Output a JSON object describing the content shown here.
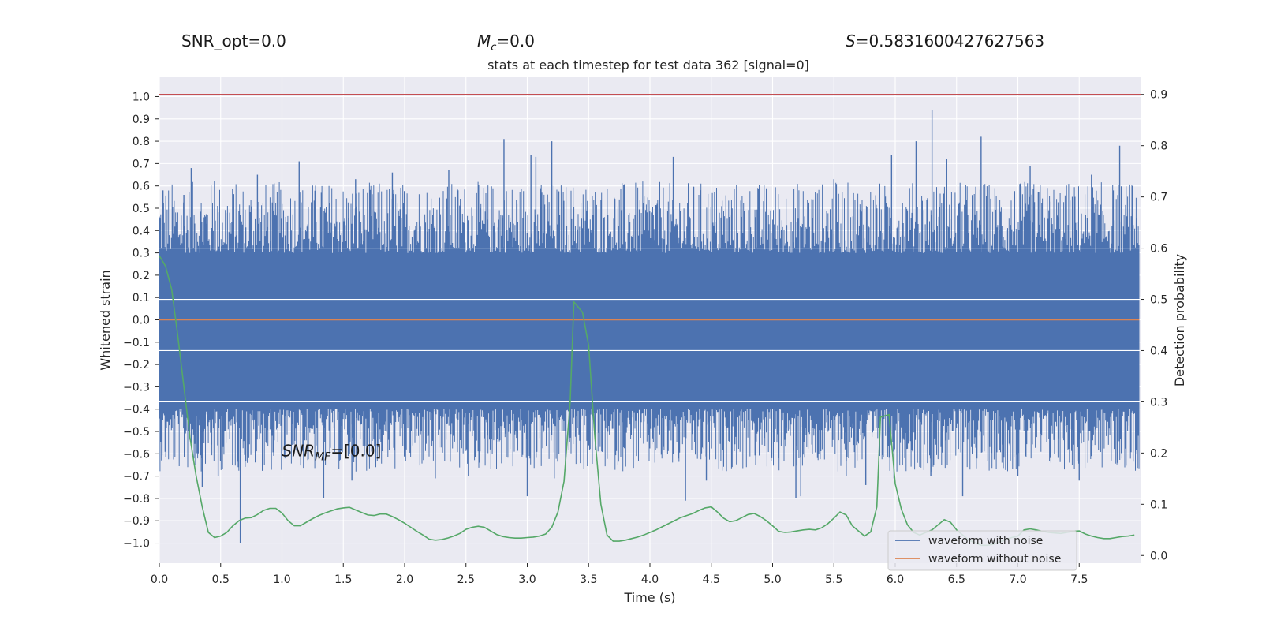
{
  "header": {
    "snr_opt": "SNR_opt=0.0",
    "mc_symbol": "M",
    "mc_sub": "c",
    "mc_value": "=0.0",
    "s_symbol": "S",
    "s_value": "=0.5831600427627563"
  },
  "colors": {
    "background": "#eaeaf2",
    "grid": "#ffffff",
    "noisy": "#4c72b0",
    "clean": "#dd8452",
    "prob": "#55a868",
    "threshold": "#c44e52"
  },
  "chart_data": {
    "type": "line",
    "title": "stats at each timestep for test data 362 [signal=0]",
    "xlabel": "Time (s)",
    "ylabel": "Whitened strain",
    "y2label": "Detection probability",
    "xlim": [
      0.0,
      8.0
    ],
    "ylim": [
      -1.09,
      1.09
    ],
    "y2lim": [
      -0.015,
      0.935
    ],
    "xticks": [
      0.0,
      0.5,
      1.0,
      1.5,
      2.0,
      2.5,
      3.0,
      3.5,
      4.0,
      4.5,
      5.0,
      5.5,
      6.0,
      6.5,
      7.0,
      7.5
    ],
    "xtick_labels": [
      "0.0",
      "0.5",
      "1.0",
      "1.5",
      "2.0",
      "2.5",
      "3.0",
      "3.5",
      "4.0",
      "4.5",
      "5.0",
      "5.5",
      "6.0",
      "6.5",
      "7.0",
      "7.5"
    ],
    "yticks": [
      1.0,
      0.9,
      0.8,
      0.7,
      0.6,
      0.5,
      0.4,
      0.3,
      0.2,
      0.1,
      0.0,
      -0.1,
      -0.2,
      -0.3,
      -0.4,
      -0.5,
      -0.6,
      -0.7,
      -0.8,
      -0.9,
      -1.0
    ],
    "ytick_labels": [
      "1.0",
      "0.9",
      "0.8",
      "0.7",
      "0.6",
      "0.5",
      "0.4",
      "0.3",
      "0.2",
      "0.1",
      "0.0",
      "−0.1",
      "−0.2",
      "−0.3",
      "−0.4",
      "−0.5",
      "−0.6",
      "−0.7",
      "−0.8",
      "−0.9",
      "−1.0"
    ],
    "y2ticks": [
      0.9,
      0.8,
      0.7,
      0.6,
      0.5,
      0.4,
      0.3,
      0.2,
      0.1,
      0.0
    ],
    "y2tick_labels": [
      "0.9",
      "0.8",
      "0.7",
      "0.6",
      "0.5",
      "0.4",
      "0.3",
      "0.2",
      "0.1",
      "0.0"
    ],
    "grid": true,
    "legend_position": "lower-right",
    "series": [
      {
        "name": "waveform with noise",
        "kind": "noise-trace",
        "band": [
          -0.4,
          0.28
        ],
        "spikes": [
          {
            "x": 0.03,
            "y": 0.58
          },
          {
            "x": 0.2,
            "y": 0.56
          },
          {
            "x": 0.26,
            "y": 0.68
          },
          {
            "x": 0.45,
            "y": 0.62
          },
          {
            "x": 0.8,
            "y": 0.65
          },
          {
            "x": 1.14,
            "y": 0.71
          },
          {
            "x": 1.6,
            "y": 0.63
          },
          {
            "x": 1.9,
            "y": 0.66
          },
          {
            "x": 2.36,
            "y": 0.67
          },
          {
            "x": 2.81,
            "y": 0.81
          },
          {
            "x": 3.03,
            "y": 0.74
          },
          {
            "x": 3.07,
            "y": 0.73
          },
          {
            "x": 3.2,
            "y": 0.8
          },
          {
            "x": 4.19,
            "y": 0.73
          },
          {
            "x": 5.5,
            "y": 0.63
          },
          {
            "x": 5.97,
            "y": 0.74
          },
          {
            "x": 6.17,
            "y": 0.8
          },
          {
            "x": 6.3,
            "y": 0.94
          },
          {
            "x": 6.42,
            "y": 0.72
          },
          {
            "x": 6.7,
            "y": 0.82
          },
          {
            "x": 7.1,
            "y": 0.69
          },
          {
            "x": 7.6,
            "y": 0.65
          },
          {
            "x": 7.83,
            "y": 0.78
          },
          {
            "x": 0.66,
            "y": -1.0
          },
          {
            "x": 0.35,
            "y": -0.75
          },
          {
            "x": 0.48,
            "y": -0.7
          },
          {
            "x": 1.34,
            "y": -0.8
          },
          {
            "x": 1.57,
            "y": -0.72
          },
          {
            "x": 2.25,
            "y": -0.71
          },
          {
            "x": 2.52,
            "y": -0.7
          },
          {
            "x": 3.0,
            "y": -0.79
          },
          {
            "x": 3.22,
            "y": -0.71
          },
          {
            "x": 4.29,
            "y": -0.81
          },
          {
            "x": 4.46,
            "y": -0.72
          },
          {
            "x": 5.19,
            "y": -0.8
          },
          {
            "x": 5.23,
            "y": -0.79
          },
          {
            "x": 5.6,
            "y": -0.7
          },
          {
            "x": 5.76,
            "y": -0.74
          },
          {
            "x": 5.99,
            "y": -0.71
          },
          {
            "x": 6.29,
            "y": -0.7
          },
          {
            "x": 6.55,
            "y": -0.79
          },
          {
            "x": 7.0,
            "y": -0.7
          },
          {
            "x": 7.5,
            "y": -0.72
          }
        ]
      },
      {
        "name": "waveform without noise",
        "kind": "line",
        "x": [
          0.0,
          7.99
        ],
        "y": [
          0.0,
          0.0
        ]
      },
      {
        "name": "",
        "kind": "line",
        "axis": "y2",
        "x": [
          0.0,
          0.05,
          0.1,
          0.15,
          0.2,
          0.25,
          0.3,
          0.35,
          0.4,
          0.45,
          0.5,
          0.55,
          0.6,
          0.65,
          0.7,
          0.75,
          0.8,
          0.85,
          0.9,
          0.95,
          1.0,
          1.05,
          1.1,
          1.15,
          1.2,
          1.25,
          1.3,
          1.35,
          1.4,
          1.45,
          1.5,
          1.55,
          1.6,
          1.65,
          1.7,
          1.75,
          1.8,
          1.85,
          1.9,
          1.95,
          2.0,
          2.05,
          2.1,
          2.15,
          2.2,
          2.25,
          2.3,
          2.35,
          2.4,
          2.45,
          2.5,
          2.55,
          2.6,
          2.65,
          2.7,
          2.75,
          2.8,
          2.85,
          2.9,
          2.95,
          3.0,
          3.05,
          3.1,
          3.15,
          3.2,
          3.25,
          3.3,
          3.35,
          3.38,
          3.45,
          3.5,
          3.55,
          3.6,
          3.65,
          3.7,
          3.75,
          3.8,
          3.85,
          3.9,
          3.95,
          4.0,
          4.05,
          4.1,
          4.15,
          4.2,
          4.25,
          4.3,
          4.35,
          4.4,
          4.45,
          4.5,
          4.55,
          4.6,
          4.65,
          4.7,
          4.75,
          4.8,
          4.85,
          4.9,
          4.95,
          5.0,
          5.05,
          5.1,
          5.15,
          5.2,
          5.25,
          5.3,
          5.35,
          5.4,
          5.45,
          5.5,
          5.55,
          5.6,
          5.65,
          5.7,
          5.75,
          5.8,
          5.85,
          5.88,
          5.95,
          6.0,
          6.05,
          6.1,
          6.15,
          6.2,
          6.25,
          6.3,
          6.35,
          6.4,
          6.45,
          6.5,
          6.55,
          6.6,
          6.65,
          6.7,
          6.75,
          6.8,
          6.85,
          6.9,
          6.95,
          7.0,
          7.05,
          7.1,
          7.15,
          7.2,
          7.25,
          7.3,
          7.35,
          7.4,
          7.45,
          7.5,
          7.55,
          7.6,
          7.65,
          7.7,
          7.75,
          7.8,
          7.85,
          7.9,
          7.95
        ],
        "y": [
          0.585,
          0.565,
          0.52,
          0.43,
          0.33,
          0.23,
          0.155,
          0.095,
          0.045,
          0.035,
          0.038,
          0.045,
          0.058,
          0.068,
          0.073,
          0.074,
          0.08,
          0.088,
          0.092,
          0.092,
          0.083,
          0.068,
          0.058,
          0.058,
          0.065,
          0.072,
          0.078,
          0.083,
          0.087,
          0.091,
          0.093,
          0.094,
          0.089,
          0.084,
          0.079,
          0.078,
          0.081,
          0.081,
          0.076,
          0.07,
          0.063,
          0.055,
          0.047,
          0.04,
          0.032,
          0.03,
          0.031,
          0.034,
          0.038,
          0.043,
          0.051,
          0.055,
          0.057,
          0.055,
          0.048,
          0.041,
          0.037,
          0.035,
          0.034,
          0.034,
          0.035,
          0.036,
          0.038,
          0.042,
          0.055,
          0.085,
          0.145,
          0.3,
          0.495,
          0.475,
          0.41,
          0.235,
          0.1,
          0.04,
          0.028,
          0.028,
          0.03,
          0.033,
          0.036,
          0.04,
          0.045,
          0.05,
          0.056,
          0.062,
          0.068,
          0.074,
          0.078,
          0.082,
          0.088,
          0.093,
          0.095,
          0.085,
          0.073,
          0.066,
          0.068,
          0.074,
          0.08,
          0.082,
          0.076,
          0.068,
          0.058,
          0.047,
          0.045,
          0.046,
          0.048,
          0.05,
          0.051,
          0.05,
          0.054,
          0.062,
          0.073,
          0.085,
          0.079,
          0.058,
          0.048,
          0.038,
          0.046,
          0.095,
          0.27,
          0.275,
          0.14,
          0.09,
          0.06,
          0.045,
          0.04,
          0.045,
          0.05,
          0.06,
          0.07,
          0.065,
          0.05,
          0.04,
          0.03,
          0.025,
          0.02,
          0.02,
          0.022,
          0.026,
          0.031,
          0.035,
          0.038,
          0.05,
          0.052,
          0.05,
          0.047,
          0.045,
          0.044,
          0.043,
          0.045,
          0.047,
          0.048,
          0.042,
          0.038,
          0.035,
          0.033,
          0.033,
          0.035,
          0.037,
          0.038,
          0.04
        ]
      }
    ],
    "threshold": {
      "axis": "y2",
      "y": 0.9
    },
    "annotation": {
      "symbol": "SNR",
      "sub": "MF",
      "value": "=[0.0]",
      "x": 1.0,
      "y": -0.6
    }
  }
}
